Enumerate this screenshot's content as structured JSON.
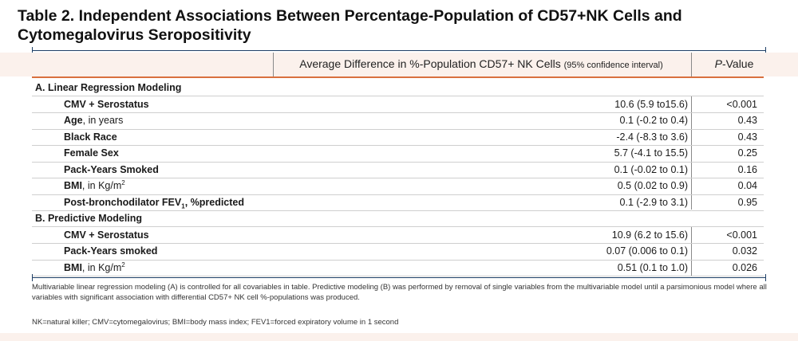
{
  "title": "Table 2. Independent Associations Between Percentage-Population of CD57+NK Cells and Cytomegalovirus Seropositivity",
  "header": {
    "col_mid": "Average Difference in %-Population CD57+ NK Cells",
    "col_mid_ci": "(95% confidence interval)",
    "col_p_italic": "P",
    "col_p_rest": "-Value"
  },
  "sections": [
    {
      "label": "A. Linear Regression Modeling",
      "rows": [
        {
          "name": "CMV + Serostatus",
          "value": "10.6 (5.9 to15.6)",
          "p": "<0.001"
        },
        {
          "name": "Age",
          "suffix": ", in years",
          "value": "0.1 (-0.2 to 0.4)",
          "p": "0.43"
        },
        {
          "name": "Black Race",
          "value": "-2.4 (-8.3 to 3.6)",
          "p": "0.43"
        },
        {
          "name": "Female Sex",
          "value": "5.7 (-4.1 to 15.5)",
          "p": "0.25"
        },
        {
          "name": "Pack-Years Smoked",
          "value": "0.1 (-0.02 to 0.1)",
          "p": "0.16"
        },
        {
          "name": "BMI",
          "suffix": ", in Kg/m",
          "sup": "2",
          "value": "0.5 (0.02 to 0.9)",
          "p": "0.04"
        },
        {
          "name": "Post-bronchodilator FEV",
          "sub": "1",
          "name2": ", %predicted",
          "value": "0.1 (-2.9 to 3.1)",
          "p": "0.95"
        }
      ]
    },
    {
      "label": "B. Predictive Modeling",
      "rows": [
        {
          "name": "CMV + Serostatus",
          "value": "10.9 (6.2 to 15.6)",
          "p": "<0.001"
        },
        {
          "name": "Pack-Years smoked",
          "value": "0.07 (0.006 to 0.1)",
          "p": "0.032"
        },
        {
          "name": "BMI",
          "suffix": ", in Kg/m",
          "sup": "2",
          "value": "0.51 (0.1 to 1.0)",
          "p": "0.026"
        }
      ]
    }
  ],
  "footnote1": "Multivariable linear regression modeling (A) is controlled for all covariables in table. Predictive modeling (B) was performed by removal of single variables from the multivariable model until a parsimonious model where all variables with significant association with differential CD57+ NK cell %-populations was produced.",
  "footnote2": "NK=natural killer; CMV=cytomegalovirus; BMI=body mass index; FEV1=forced expiratory volume in 1 second"
}
